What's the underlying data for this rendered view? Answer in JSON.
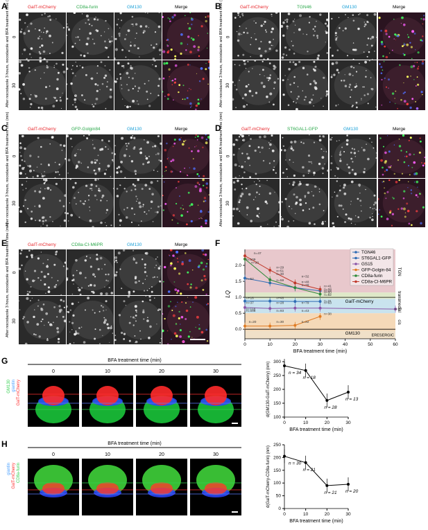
{
  "row_label": "After nocodazole 3 hours, nocodazole and BFA treatment time (min)",
  "times_ab": [
    "0",
    "30"
  ],
  "panels": {
    "A": {
      "letter": "A",
      "channels": [
        "GalT-mCherry",
        "CD8a-furin",
        "GM130",
        "Merge"
      ]
    },
    "B": {
      "letter": "B",
      "channels": [
        "GalT-mCherry",
        "TGN46",
        "GM130",
        "Merge"
      ]
    },
    "C": {
      "letter": "C",
      "channels": [
        "GalT-mCherry",
        "GFP-Golgin84",
        "GM130",
        "Merge"
      ]
    },
    "D": {
      "letter": "D",
      "channels": [
        "GalT-mCherry",
        "ST6GAL1-GFP",
        "GM130",
        "Merge"
      ]
    },
    "E": {
      "letter": "E",
      "channels": [
        "GalT-mCherry",
        "CD8a-CI-M6PR",
        "GM130",
        "Merge"
      ]
    }
  },
  "chart_F": {
    "letter": "F",
    "ylabel": "LQ",
    "xlabel": "BFA treatment time (min)",
    "xticks": [
      "0",
      "10",
      "20",
      "30",
      "40",
      "50",
      "60"
    ],
    "yticks": [
      "0.0",
      "0.5",
      "1.0",
      "1.5",
      "2.0"
    ],
    "zones": [
      "TGN",
      "trans",
      "medial",
      "cis",
      "ERESERGIC"
    ],
    "ref_lines": {
      "galt": "GalT-mCherry",
      "gm130": "GM130"
    },
    "legend": [
      "TGN46",
      "ST6GAL1-GFP",
      "GS15",
      "GFP-Golgin-84",
      "CD8a-furin",
      "CD8a-CI-M6PR"
    ],
    "n_labels": [
      "n=47",
      "n=29",
      "n=32",
      "n=41",
      "n=34",
      "n=33",
      "n=20",
      "n=52",
      "n=30",
      "n=59",
      "n=48",
      "n=82",
      "n=16",
      "n=48",
      "n=108",
      "n=93",
      "n=43",
      "n=31",
      "n=118",
      "n=60",
      "n=20",
      "n=30",
      "n=32",
      "n=38",
      "n=109",
      "n=51",
      "n=78",
      "n=24",
      "n=37",
      "n=28",
      "n=79",
      "n=63"
    ]
  },
  "panel_G": {
    "letter": "G",
    "title": "BFA treatment time (min)",
    "times": [
      "0",
      "10",
      "20",
      "30"
    ],
    "side_labels": [
      "GM130",
      "giantin",
      "GalT-mCherry"
    ],
    "chart": {
      "ylabel": "d(GM130-GalT-mCherry) (nm)",
      "xlabel": "BFA treatment time (min)",
      "xticks": [
        "0",
        "10",
        "20",
        "30"
      ],
      "yticks": [
        "100",
        "150",
        "200",
        "250",
        "300"
      ],
      "n_labels": [
        "n = 34",
        "n = 18",
        "n = 28",
        "n = 13"
      ]
    }
  },
  "panel_H": {
    "letter": "H",
    "title": "BFA treatment time (min)",
    "times": [
      "0",
      "10",
      "20",
      "30"
    ],
    "side_labels": [
      "giantin",
      "GalT-mCherry",
      "CD8a-furin"
    ],
    "chart": {
      "ylabel": "d(GalT-mCherry-CD8a-furin) (nm)",
      "xlabel": "BFA treatment time (min)",
      "xticks": [
        "0",
        "10",
        "20",
        "30"
      ],
      "yticks": [
        "0",
        "50",
        "100",
        "150",
        "200",
        "250"
      ],
      "n_labels": [
        "n = 30",
        "n = 21",
        "n = 21",
        "n = 20"
      ]
    }
  },
  "chart_data": [
    {
      "type": "line",
      "xlabel": "BFA treatment time (min)",
      "ylabel": "LQ",
      "ylim": [
        -0.3,
        2.5
      ],
      "x": [
        0,
        10,
        20,
        30,
        60
      ],
      "legend_position": "top-right",
      "series": [
        {
          "name": "TGN46",
          "color": "#2f6db5",
          "values": [
            1.6,
            1.45,
            1.3,
            1.2,
            null
          ]
        },
        {
          "name": "ST6GAL1-GFP",
          "color": "#2f6db5",
          "values": [
            0.88,
            0.88,
            0.87,
            0.87,
            null
          ]
        },
        {
          "name": "GS15",
          "color": "#8a55a8",
          "values": [
            0.68,
            0.65,
            0.66,
            0.66,
            0.63
          ]
        },
        {
          "name": "GFP-Golgin-84",
          "color": "#e07b22",
          "values": [
            0.1,
            0.1,
            0.12,
            0.4,
            null
          ]
        },
        {
          "name": "CD8a-furin",
          "color": "#2e8b3a",
          "values": [
            2.2,
            1.55,
            1.3,
            1.1,
            null
          ]
        },
        {
          "name": "CD8a-CI-M6PR",
          "color": "#c0392b",
          "values": [
            2.3,
            1.85,
            1.45,
            1.25,
            null
          ]
        }
      ]
    },
    {
      "type": "line",
      "xlabel": "BFA treatment time (min)",
      "ylabel": "d(GM130-GalT-mCherry) (nm)",
      "ylim": [
        100,
        300
      ],
      "x": [
        0,
        10,
        20,
        30
      ],
      "series": [
        {
          "values": [
            285,
            268,
            160,
            190
          ]
        }
      ]
    },
    {
      "type": "line",
      "xlabel": "BFA treatment time (min)",
      "ylabel": "d(GalT-mCherry-CD8a-furin) (nm)",
      "ylim": [
        0,
        250
      ],
      "x": [
        0,
        10,
        20,
        30
      ],
      "series": [
        {
          "values": [
            205,
            180,
            90,
            95
          ]
        }
      ]
    }
  ]
}
